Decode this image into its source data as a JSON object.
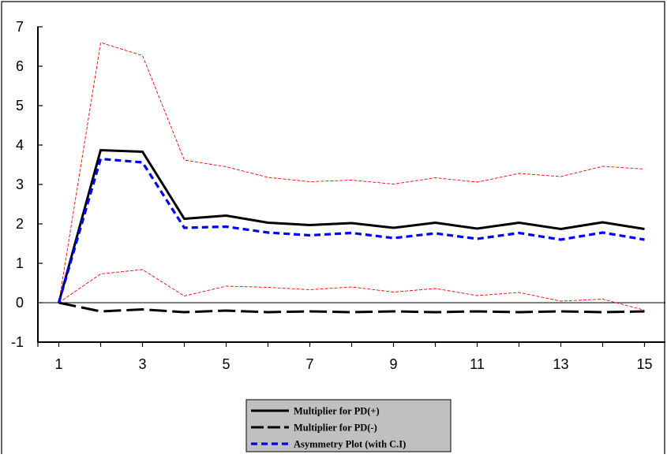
{
  "chart_data": {
    "type": "line",
    "title": "",
    "xlabel": "",
    "ylabel": "",
    "x": [
      1,
      2,
      3,
      4,
      5,
      6,
      7,
      8,
      9,
      10,
      11,
      12,
      13,
      14,
      15
    ],
    "xlim": [
      0.5,
      15.5
    ],
    "ylim": [
      -1,
      7
    ],
    "x_ticks": [
      "1",
      "3",
      "5",
      "7",
      "9",
      "11",
      "13",
      "15"
    ],
    "y_ticks": [
      "7",
      "6",
      "5",
      "4",
      "3",
      "2",
      "1",
      "0",
      "-1"
    ],
    "zero_line": true,
    "grid": false,
    "legend_position": "bottom-center",
    "series": [
      {
        "name": "Multiplier for PD(+)",
        "style": "solid",
        "color": "#000000",
        "values": [
          0.0,
          3.87,
          3.83,
          2.13,
          2.21,
          2.03,
          1.97,
          2.02,
          1.9,
          2.03,
          1.88,
          2.03,
          1.87,
          2.04,
          1.87
        ]
      },
      {
        "name": "Multiplier for PD(-)",
        "style": "long-dash",
        "color": "#000000",
        "values": [
          0.0,
          -0.22,
          -0.17,
          -0.24,
          -0.2,
          -0.24,
          -0.22,
          -0.24,
          -0.22,
          -0.24,
          -0.22,
          -0.24,
          -0.22,
          -0.24,
          -0.22
        ]
      },
      {
        "name": "Asymmetry Plot (with C.I)",
        "style": "dash",
        "color": "#0000ff",
        "values": [
          0.0,
          3.65,
          3.56,
          1.9,
          1.93,
          1.78,
          1.71,
          1.77,
          1.64,
          1.76,
          1.62,
          1.77,
          1.6,
          1.78,
          1.6
        ]
      },
      {
        "name": "",
        "style": "thin-dash",
        "color": "#ff0000",
        "values": [
          0.0,
          6.6,
          6.27,
          3.62,
          3.45,
          3.18,
          3.07,
          3.11,
          3.01,
          3.17,
          3.06,
          3.28,
          3.2,
          3.46,
          3.39
        ]
      },
      {
        "name": "",
        "style": "thin-dash",
        "color": "#ff0000",
        "values": [
          0.0,
          0.73,
          0.84,
          0.17,
          0.42,
          0.39,
          0.33,
          0.4,
          0.27,
          0.36,
          0.18,
          0.26,
          0.04,
          0.09,
          -0.19
        ]
      }
    ]
  }
}
